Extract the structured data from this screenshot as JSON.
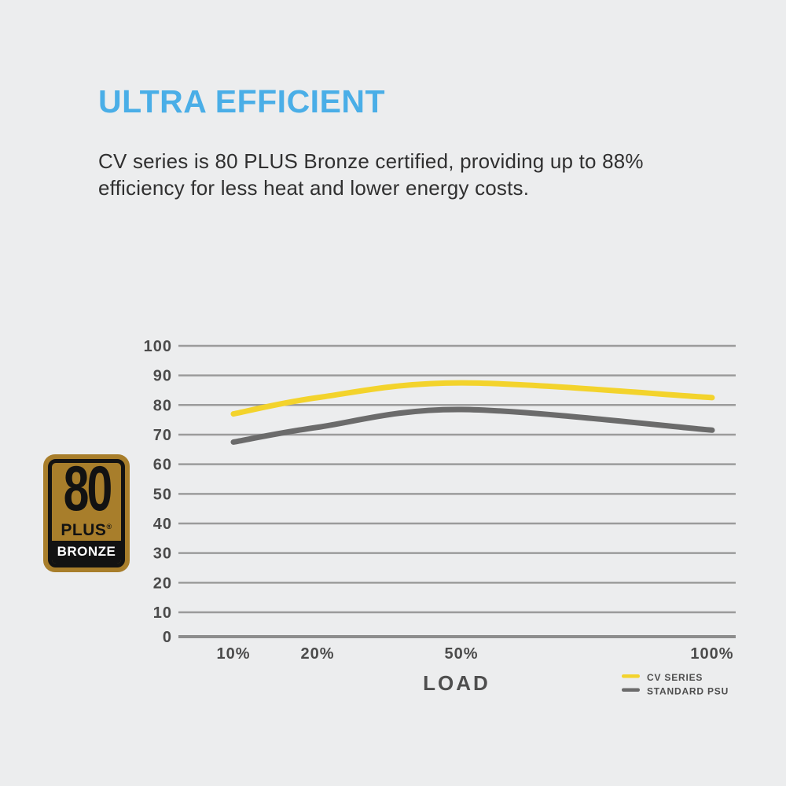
{
  "page": {
    "background": "#ECEDEE",
    "title": "ULTRA EFFICIENT",
    "title_color": "#4AAEE7",
    "description": "CV series is 80 PLUS Bronze certified, providing up to 88% efficiency for less heat and lower energy costs."
  },
  "badge": {
    "label": "80 PLUS Bronze certification badge",
    "number": "80",
    "plus": "PLUS",
    "registered": "®",
    "tier": "BRONZE",
    "bronze_color": "#A87E2B",
    "black_color": "#121212"
  },
  "chart_data": {
    "type": "line",
    "title": "",
    "xlabel": "LOAD",
    "ylabel": "",
    "categories": [
      "10%",
      "20%",
      "50%",
      "100%"
    ],
    "y_ticks": [
      0,
      10,
      20,
      30,
      40,
      50,
      60,
      70,
      80,
      90,
      100
    ],
    "ylim": [
      0,
      100
    ],
    "grid": "horizontal only",
    "gridline_color": "#9B9B9B",
    "axis_label_color": "#4B4B4B",
    "legend_position": "bottom-right",
    "series": [
      {
        "name": "CV SERIES",
        "color": "#F3D32C",
        "values": [
          77,
          82.5,
          87.5,
          82.5
        ]
      },
      {
        "name": "STANDARD PSU",
        "color": "#6B6B6B",
        "values": [
          67.5,
          72.5,
          78.5,
          71.5
        ]
      }
    ]
  }
}
